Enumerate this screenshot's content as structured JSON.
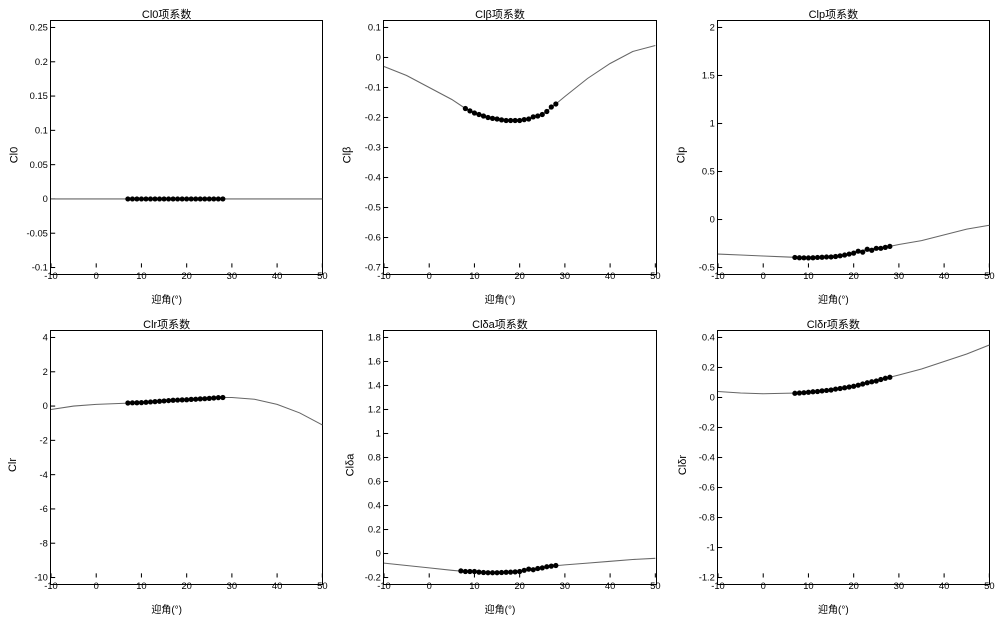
{
  "global": {
    "xlabel": "迎角(°)",
    "xlim": [
      -10,
      50
    ],
    "xticks": [
      -10,
      0,
      10,
      20,
      30,
      40,
      50
    ],
    "marker_color": "#000000",
    "line_color": "#666666",
    "line_width": 1,
    "marker_radius": 2.5,
    "background_color": "#ffffff",
    "border_color": "#000000",
    "tick_label_fontsize": 9,
    "title_fontsize": 11,
    "label_fontsize": 10
  },
  "panels": [
    {
      "title": "Cl0项系数",
      "ylabel": "Cl0",
      "ylim": [
        -0.1,
        0.25
      ],
      "yticks": [
        -0.1,
        -0.05,
        0,
        0.05,
        0.1,
        0.15,
        0.2,
        0.25
      ],
      "line": [
        [
          -10,
          0
        ],
        [
          0,
          0
        ],
        [
          10,
          0
        ],
        [
          20,
          0
        ],
        [
          30,
          0
        ],
        [
          40,
          0
        ],
        [
          50,
          0
        ]
      ],
      "markers": [
        [
          7,
          0
        ],
        [
          8,
          0
        ],
        [
          9,
          0
        ],
        [
          10,
          0
        ],
        [
          11,
          0
        ],
        [
          12,
          0
        ],
        [
          13,
          0
        ],
        [
          14,
          0
        ],
        [
          15,
          0
        ],
        [
          16,
          0
        ],
        [
          17,
          0
        ],
        [
          18,
          0
        ],
        [
          19,
          0
        ],
        [
          20,
          0
        ],
        [
          21,
          0
        ],
        [
          22,
          0
        ],
        [
          23,
          0
        ],
        [
          24,
          0
        ],
        [
          25,
          0
        ],
        [
          26,
          0
        ],
        [
          27,
          0
        ],
        [
          28,
          0
        ]
      ]
    },
    {
      "title": "Clβ项系数",
      "ylabel": "Clβ",
      "ylim": [
        -0.7,
        0.1
      ],
      "yticks": [
        -0.7,
        -0.6,
        -0.5,
        -0.4,
        -0.3,
        -0.2,
        -0.1,
        0,
        0.1
      ],
      "line": [
        [
          -10,
          -0.03
        ],
        [
          -5,
          -0.06
        ],
        [
          0,
          -0.1
        ],
        [
          5,
          -0.14
        ],
        [
          8,
          -0.17
        ],
        [
          10,
          -0.185
        ],
        [
          12,
          -0.195
        ],
        [
          15,
          -0.205
        ],
        [
          18,
          -0.21
        ],
        [
          20,
          -0.21
        ],
        [
          22,
          -0.205
        ],
        [
          25,
          -0.19
        ],
        [
          28,
          -0.155
        ],
        [
          30,
          -0.13
        ],
        [
          35,
          -0.07
        ],
        [
          40,
          -0.02
        ],
        [
          45,
          0.02
        ],
        [
          50,
          0.04
        ]
      ],
      "markers": [
        [
          8,
          -0.17
        ],
        [
          9,
          -0.178
        ],
        [
          10,
          -0.185
        ],
        [
          11,
          -0.19
        ],
        [
          12,
          -0.195
        ],
        [
          13,
          -0.2
        ],
        [
          14,
          -0.203
        ],
        [
          15,
          -0.205
        ],
        [
          16,
          -0.208
        ],
        [
          17,
          -0.21
        ],
        [
          18,
          -0.21
        ],
        [
          19,
          -0.21
        ],
        [
          20,
          -0.21
        ],
        [
          21,
          -0.207
        ],
        [
          22,
          -0.205
        ],
        [
          23,
          -0.198
        ],
        [
          24,
          -0.195
        ],
        [
          25,
          -0.19
        ],
        [
          26,
          -0.18
        ],
        [
          27,
          -0.165
        ],
        [
          28,
          -0.155
        ]
      ]
    },
    {
      "title": "Clp项系数",
      "ylabel": "Clp",
      "ylim": [
        -0.5,
        2
      ],
      "yticks": [
        -0.5,
        0,
        0.5,
        1,
        1.5,
        2
      ],
      "line": [
        [
          -10,
          -0.36
        ],
        [
          -5,
          -0.37
        ],
        [
          0,
          -0.38
        ],
        [
          5,
          -0.39
        ],
        [
          10,
          -0.4
        ],
        [
          15,
          -0.39
        ],
        [
          18,
          -0.37
        ],
        [
          20,
          -0.35
        ],
        [
          22,
          -0.32
        ],
        [
          25,
          -0.3
        ],
        [
          28,
          -0.28
        ],
        [
          30,
          -0.26
        ],
        [
          35,
          -0.22
        ],
        [
          40,
          -0.16
        ],
        [
          45,
          -0.1
        ],
        [
          50,
          -0.06
        ]
      ],
      "markers": [
        [
          7,
          -0.395
        ],
        [
          8,
          -0.398
        ],
        [
          9,
          -0.399
        ],
        [
          10,
          -0.4
        ],
        [
          11,
          -0.398
        ],
        [
          12,
          -0.395
        ],
        [
          13,
          -0.393
        ],
        [
          14,
          -0.39
        ],
        [
          15,
          -0.39
        ],
        [
          16,
          -0.385
        ],
        [
          17,
          -0.378
        ],
        [
          18,
          -0.37
        ],
        [
          19,
          -0.36
        ],
        [
          20,
          -0.35
        ],
        [
          21,
          -0.33
        ],
        [
          22,
          -0.34
        ],
        [
          23,
          -0.31
        ],
        [
          24,
          -0.32
        ],
        [
          25,
          -0.3
        ],
        [
          26,
          -0.3
        ],
        [
          27,
          -0.29
        ],
        [
          28,
          -0.28
        ]
      ]
    },
    {
      "title": "Clr项系数",
      "ylabel": "Clr",
      "ylim": [
        -10,
        4
      ],
      "yticks": [
        -10,
        -8,
        -6,
        -4,
        -2,
        0,
        2,
        4
      ],
      "line": [
        [
          -10,
          -0.2
        ],
        [
          -5,
          0.0
        ],
        [
          0,
          0.1
        ],
        [
          5,
          0.15
        ],
        [
          10,
          0.2
        ],
        [
          15,
          0.3
        ],
        [
          20,
          0.37
        ],
        [
          25,
          0.45
        ],
        [
          28,
          0.5
        ],
        [
          30,
          0.5
        ],
        [
          35,
          0.4
        ],
        [
          40,
          0.1
        ],
        [
          45,
          -0.4
        ],
        [
          50,
          -1.1
        ]
      ],
      "markers": [
        [
          7,
          0.18
        ],
        [
          8,
          0.19
        ],
        [
          9,
          0.195
        ],
        [
          10,
          0.2
        ],
        [
          11,
          0.22
        ],
        [
          12,
          0.24
        ],
        [
          13,
          0.26
        ],
        [
          14,
          0.28
        ],
        [
          15,
          0.3
        ],
        [
          16,
          0.32
        ],
        [
          17,
          0.34
        ],
        [
          18,
          0.35
        ],
        [
          19,
          0.36
        ],
        [
          20,
          0.37
        ],
        [
          21,
          0.39
        ],
        [
          22,
          0.4
        ],
        [
          23,
          0.42
        ],
        [
          24,
          0.43
        ],
        [
          25,
          0.45
        ],
        [
          26,
          0.47
        ],
        [
          27,
          0.49
        ],
        [
          28,
          0.5
        ]
      ]
    },
    {
      "title": "Clδa项系数",
      "ylabel": "Clδa",
      "ylim": [
        -0.2,
        1.8
      ],
      "yticks": [
        -0.2,
        0,
        0.2,
        0.4,
        0.6,
        0.8,
        1,
        1.2,
        1.4,
        1.6,
        1.8
      ],
      "line": [
        [
          -10,
          -0.08
        ],
        [
          -5,
          -0.1
        ],
        [
          0,
          -0.12
        ],
        [
          5,
          -0.14
        ],
        [
          8,
          -0.15
        ],
        [
          10,
          -0.15
        ],
        [
          13,
          -0.16
        ],
        [
          15,
          -0.16
        ],
        [
          18,
          -0.155
        ],
        [
          20,
          -0.15
        ],
        [
          22,
          -0.13
        ],
        [
          25,
          -0.12
        ],
        [
          27,
          -0.105
        ],
        [
          30,
          -0.095
        ],
        [
          35,
          -0.08
        ],
        [
          40,
          -0.065
        ],
        [
          45,
          -0.05
        ],
        [
          50,
          -0.04
        ]
      ],
      "markers": [
        [
          7,
          -0.145
        ],
        [
          8,
          -0.15
        ],
        [
          9,
          -0.15
        ],
        [
          10,
          -0.15
        ],
        [
          11,
          -0.155
        ],
        [
          12,
          -0.158
        ],
        [
          13,
          -0.16
        ],
        [
          14,
          -0.16
        ],
        [
          15,
          -0.16
        ],
        [
          16,
          -0.158
        ],
        [
          17,
          -0.156
        ],
        [
          18,
          -0.155
        ],
        [
          19,
          -0.153
        ],
        [
          20,
          -0.15
        ],
        [
          21,
          -0.14
        ],
        [
          22,
          -0.13
        ],
        [
          23,
          -0.135
        ],
        [
          24,
          -0.125
        ],
        [
          25,
          -0.12
        ],
        [
          26,
          -0.11
        ],
        [
          27,
          -0.105
        ],
        [
          28,
          -0.1
        ]
      ]
    },
    {
      "title": "Clδr项系数",
      "ylabel": "Clδr",
      "ylim": [
        -1.2,
        0.4
      ],
      "yticks": [
        -1.2,
        -1,
        -0.8,
        -0.6,
        -0.4,
        -0.2,
        0,
        0.2,
        0.4
      ],
      "line": [
        [
          -10,
          0.04
        ],
        [
          -5,
          0.03
        ],
        [
          0,
          0.025
        ],
        [
          5,
          0.028
        ],
        [
          8,
          0.03
        ],
        [
          10,
          0.035
        ],
        [
          12,
          0.04
        ],
        [
          15,
          0.05
        ],
        [
          18,
          0.065
        ],
        [
          20,
          0.075
        ],
        [
          22,
          0.09
        ],
        [
          25,
          0.11
        ],
        [
          28,
          0.135
        ],
        [
          30,
          0.15
        ],
        [
          35,
          0.19
        ],
        [
          40,
          0.24
        ],
        [
          45,
          0.29
        ],
        [
          50,
          0.35
        ]
      ],
      "markers": [
        [
          7,
          0.028
        ],
        [
          8,
          0.03
        ],
        [
          9,
          0.032
        ],
        [
          10,
          0.035
        ],
        [
          11,
          0.038
        ],
        [
          12,
          0.04
        ],
        [
          13,
          0.044
        ],
        [
          14,
          0.047
        ],
        [
          15,
          0.05
        ],
        [
          16,
          0.056
        ],
        [
          17,
          0.06
        ],
        [
          18,
          0.065
        ],
        [
          19,
          0.07
        ],
        [
          20,
          0.075
        ],
        [
          21,
          0.082
        ],
        [
          22,
          0.09
        ],
        [
          23,
          0.098
        ],
        [
          24,
          0.105
        ],
        [
          25,
          0.11
        ],
        [
          26,
          0.12
        ],
        [
          27,
          0.128
        ],
        [
          28,
          0.135
        ]
      ]
    }
  ]
}
